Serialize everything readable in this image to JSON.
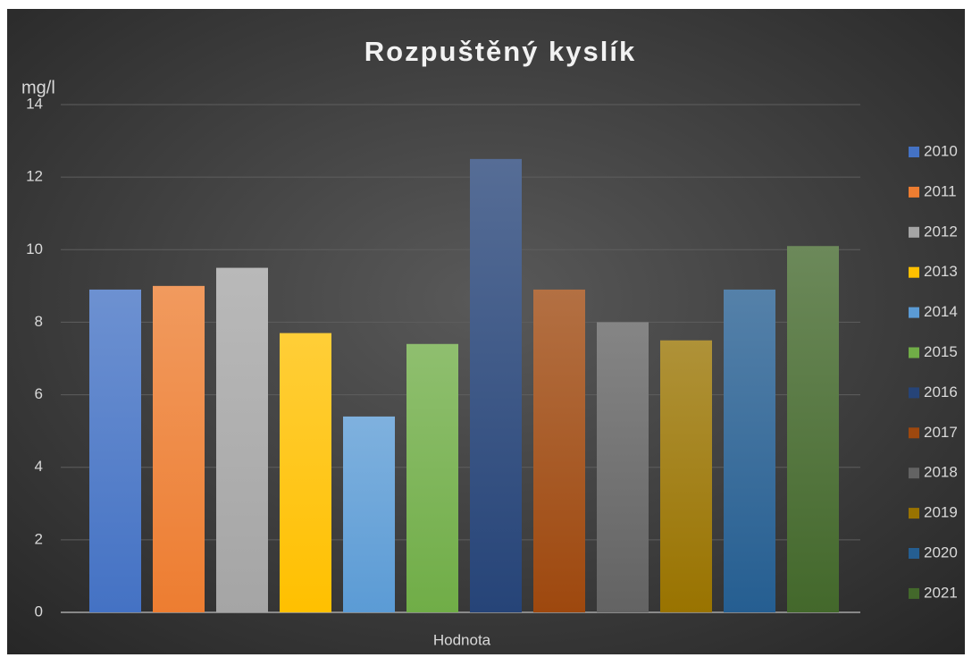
{
  "chart_data": {
    "type": "bar",
    "title": "Rozpuštěný kyslík",
    "y_axis_label": "mg/l",
    "categories": [
      "Hodnota"
    ],
    "series": [
      {
        "name": "2010",
        "color": "#4472c4",
        "values": [
          8.9
        ]
      },
      {
        "name": "2011",
        "color": "#ed7d31",
        "values": [
          9.0
        ]
      },
      {
        "name": "2012",
        "color": "#a5a5a5",
        "values": [
          9.5
        ]
      },
      {
        "name": "2013",
        "color": "#ffc000",
        "values": [
          7.7
        ]
      },
      {
        "name": "2014",
        "color": "#5b9bd5",
        "values": [
          5.4
        ]
      },
      {
        "name": "2015",
        "color": "#70ad47",
        "values": [
          7.4
        ]
      },
      {
        "name": "2016",
        "color": "#264478",
        "values": [
          12.5
        ]
      },
      {
        "name": "2017",
        "color": "#9e480e",
        "values": [
          8.9
        ]
      },
      {
        "name": "2018",
        "color": "#636363",
        "values": [
          8.0
        ]
      },
      {
        "name": "2019",
        "color": "#997300",
        "values": [
          7.5
        ]
      },
      {
        "name": "2020",
        "color": "#255e91",
        "values": [
          8.9
        ]
      },
      {
        "name": "2021",
        "color": "#43682b",
        "values": [
          10.1
        ]
      }
    ],
    "ylim": [
      0,
      14
    ],
    "yticks": [
      0,
      2,
      4,
      6,
      8,
      10,
      12,
      14
    ],
    "grid": true,
    "legend": "right"
  }
}
